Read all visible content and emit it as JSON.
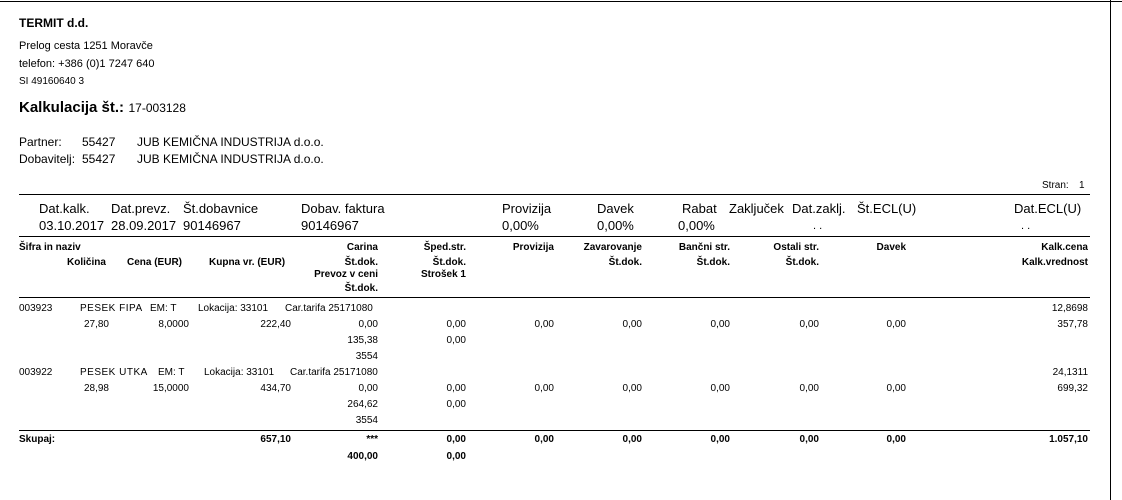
{
  "company": {
    "name": "TERMIT d.d.",
    "address": "Prelog cesta 1251 Moravče",
    "phone": "telefon: +386 (0)1 7247 640",
    "id": "SI 49160640 3"
  },
  "title": {
    "label": "Kalkulacija št.:",
    "number": "17-003128"
  },
  "partner": {
    "label": "Partner:",
    "code": "55427",
    "name": "JUB KEMIČNA INDUSTRIJA d.o.o."
  },
  "supplier": {
    "label": "Dobavitelj:",
    "code": "55427",
    "name": "JUB KEMIČNA INDUSTRIJA d.o.o."
  },
  "page": {
    "label": "Stran:",
    "number": "1"
  },
  "header": {
    "dat_kalk_label": "Dat.kalk.",
    "dat_prevz_label": "Dat.prevz.",
    "st_dob_label": "Št.dobavnice",
    "dob_faktura_label": "Dobav. faktura",
    "provizija_label": "Provizija",
    "davek_label": "Davek",
    "rabat_label": "Rabat",
    "zakljucek_label": "Zaključek",
    "dat_zakl_label": "Dat.zaklj.",
    "st_ecl_label": "Št.ECL(U)",
    "dat_ecl_label": "Dat.ECL(U)",
    "dat_kalk": "03.10.2017",
    "dat_prevz": "28.09.2017",
    "st_dob": "90146967",
    "dob_faktura": "90146967",
    "provizija": "0,00%",
    "davek": "0,00%",
    "rabat": "0,00%",
    "dat_zakl": ". .",
    "dat_ecl": ". ."
  },
  "columns": {
    "sifra": "Šifra in naziv",
    "kolicina": "Količina",
    "cena": "Cena (EUR)",
    "kupna": "Kupna vr. (EUR)",
    "carina": "Carina",
    "carina_st": "Št.dok.",
    "prevoz": "Prevoz v ceni",
    "prevoz_st": "Št.dok.",
    "sped": "Šped.str.",
    "sped_st": "Št.dok.",
    "strosek": "Strošek 1",
    "provizija": "Provizija",
    "zavarovanje": "Zavarovanje",
    "zavarovanje_st": "Št.dok.",
    "bancni": "Bančni str.",
    "bancni_st": "Št.dok.",
    "ostali": "Ostali str.",
    "ostali_st": "Št.dok.",
    "davek": "Davek",
    "kalk_cena": "Kalk.cena",
    "kalk_vrednost": "Kalk.vrednost"
  },
  "items": [
    {
      "code": "003923",
      "name": "PESEK FIPA",
      "em": "EM: T",
      "lokacija": "Lokacija: 33101",
      "tarifa": "Car.tarifa 25171080",
      "kolicina": "27,80",
      "cena": "8,0000",
      "kupna": "222,40",
      "carina": "0,00",
      "prevoz": "135,38",
      "prevoz_st": "3554",
      "sped": "0,00",
      "strosek": "0,00",
      "provizija": "0,00",
      "zavarovanje": "0,00",
      "bancni": "0,00",
      "ostali": "0,00",
      "davek": "0,00",
      "kalk_cena": "12,8698",
      "kalk_vrednost": "357,78"
    },
    {
      "code": "003922",
      "name": "PESEK UTKA",
      "em": "EM: T",
      "lokacija": "Lokacija: 33101",
      "tarifa": "Car.tarifa 25171080",
      "kolicina": "28,98",
      "cena": "15,0000",
      "kupna": "434,70",
      "carina": "0,00",
      "prevoz": "264,62",
      "prevoz_st": "3554",
      "sped": "0,00",
      "strosek": "0,00",
      "provizija": "0,00",
      "zavarovanje": "0,00",
      "bancni": "0,00",
      "ostali": "0,00",
      "davek": "0,00",
      "kalk_cena": "24,1311",
      "kalk_vrednost": "699,32"
    }
  ],
  "totals": {
    "label": "Skupaj:",
    "kupna": "657,10",
    "carina": "***",
    "prevoz": "400,00",
    "sped": "0,00",
    "strosek": "0,00",
    "provizija": "0,00",
    "zavarovanje": "0,00",
    "bancni": "0,00",
    "ostali": "0,00",
    "davek": "0,00",
    "kalk_vrednost": "1.057,10"
  }
}
